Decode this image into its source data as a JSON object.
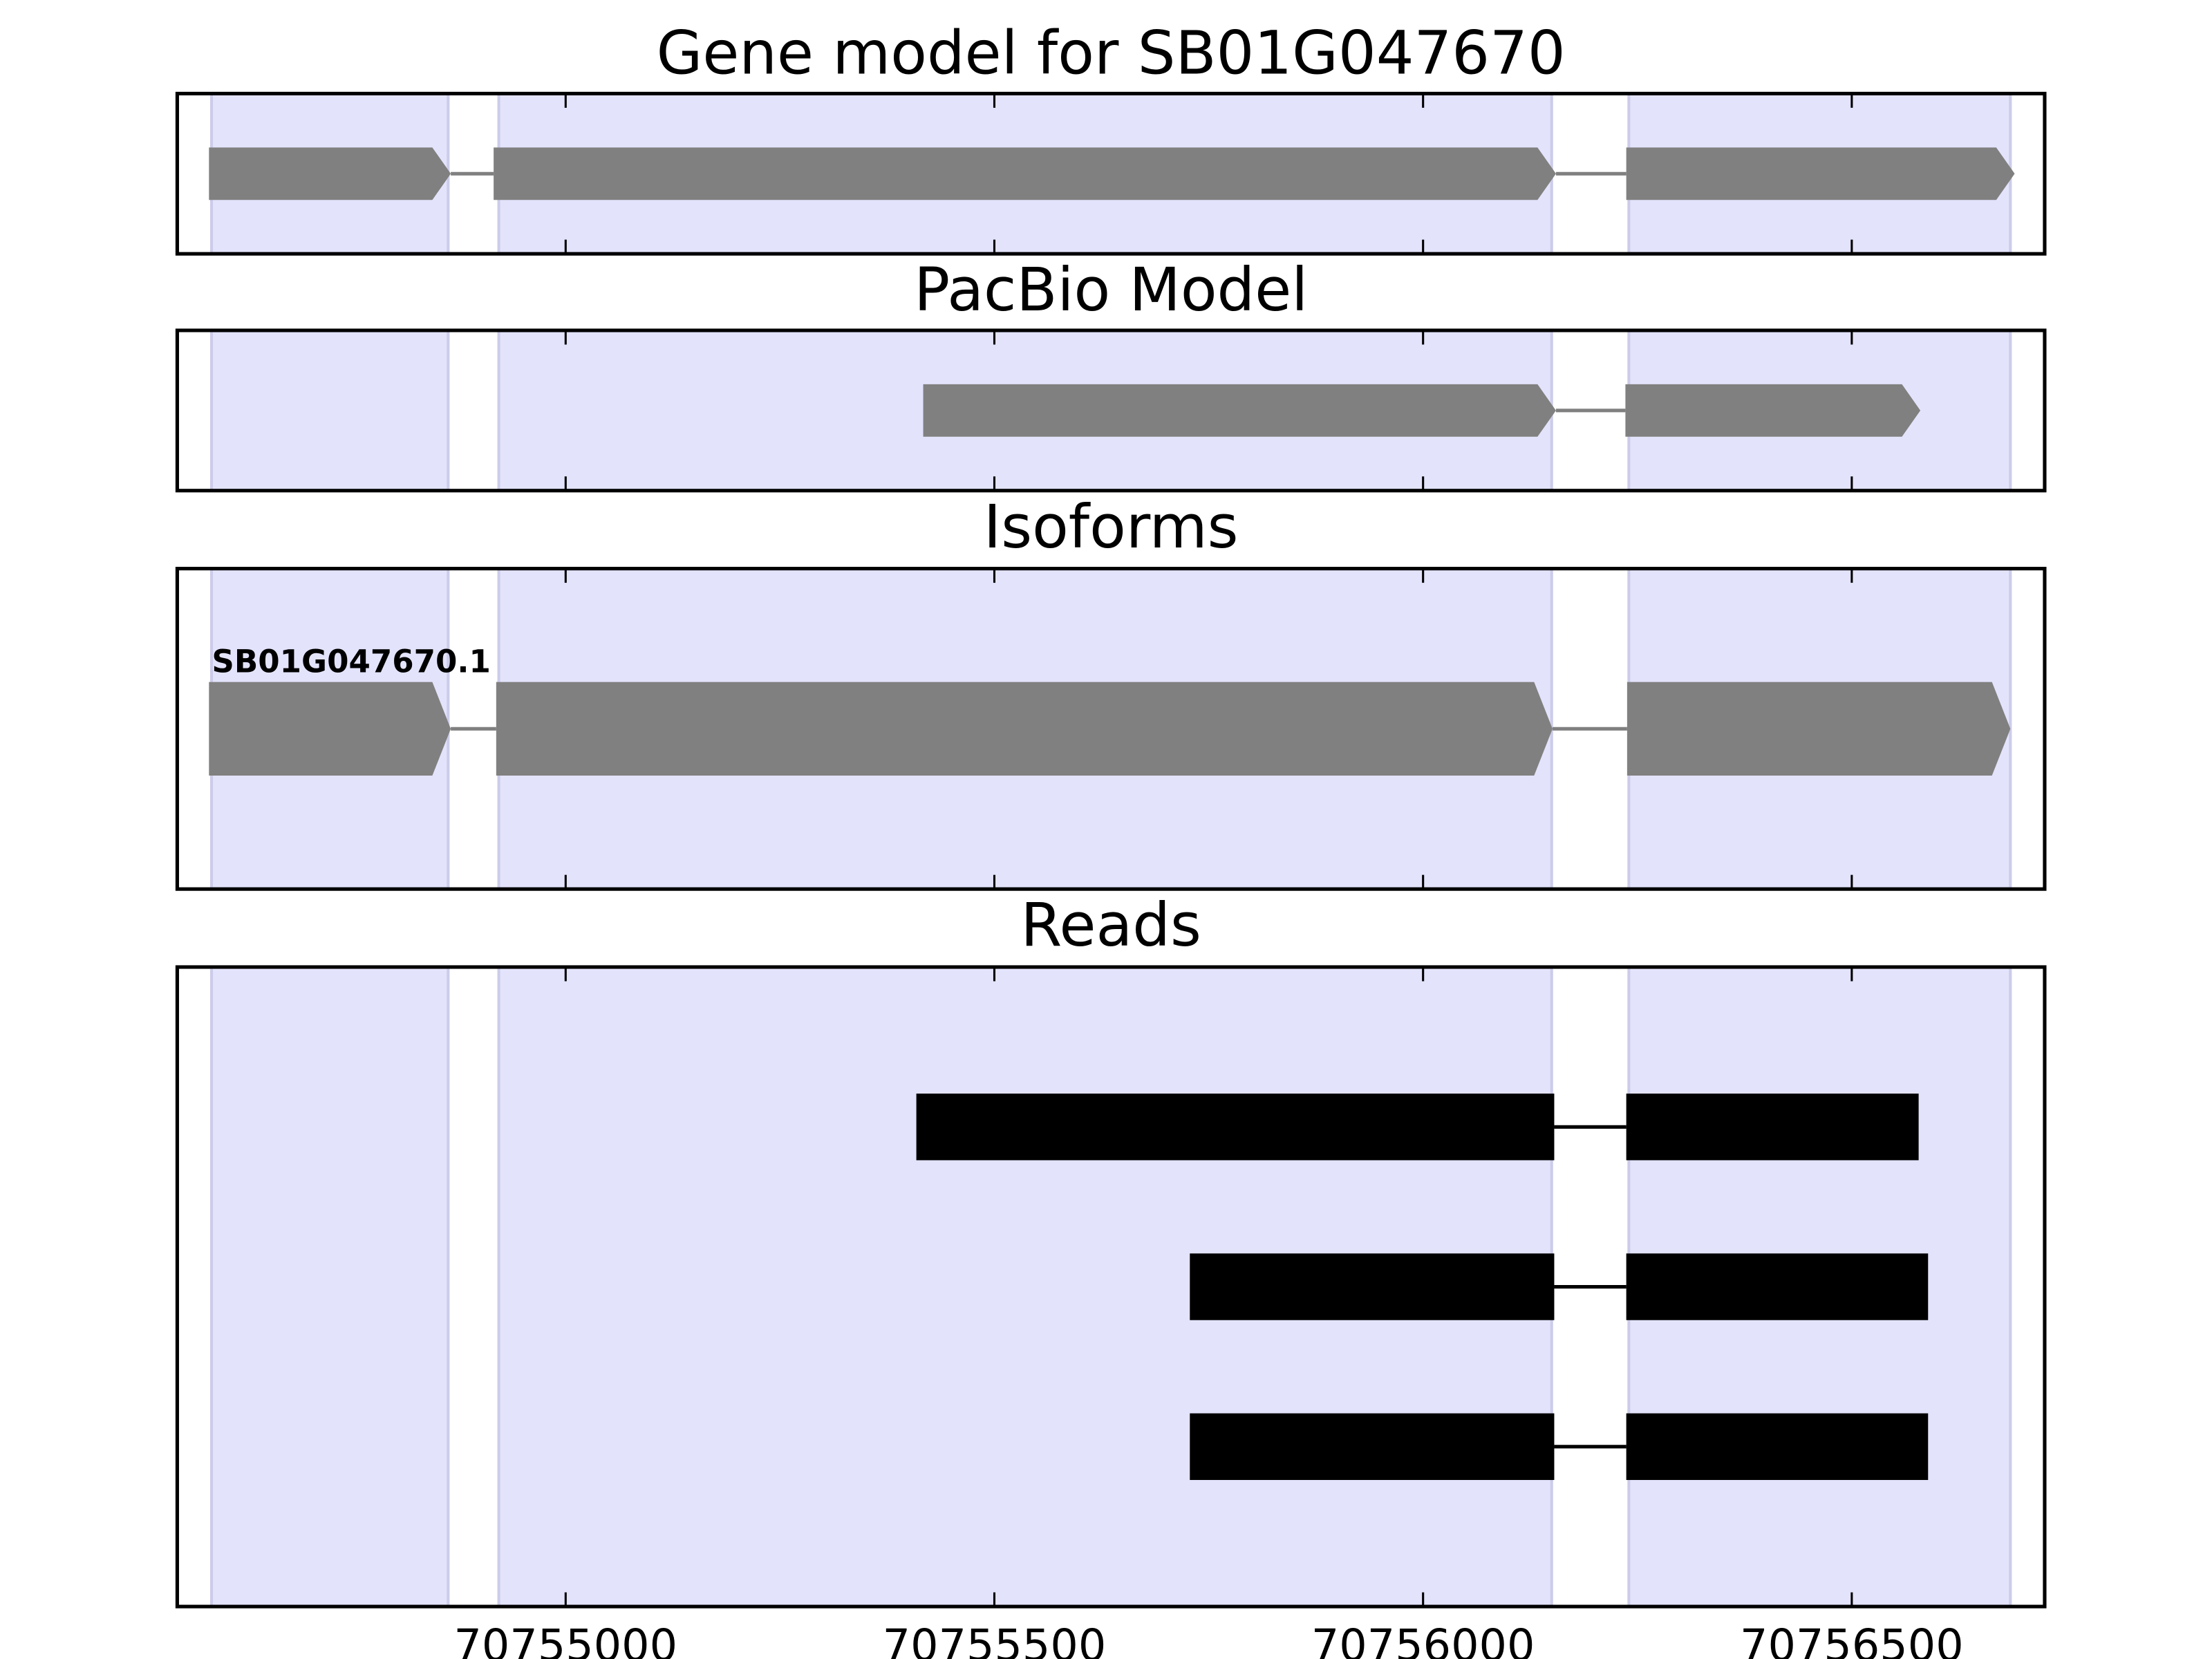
{
  "chart_data": [
    {
      "type": "gene",
      "title": "Gene model for SB01G047670",
      "xlim": [
        70754547,
        70756725
      ],
      "xticks": [
        70755000,
        70755500,
        70756000,
        70756500
      ],
      "region_color": "#e3e3fc",
      "regions": [
        [
          70754587,
          70754863
        ],
        [
          70754922,
          70756150
        ],
        [
          70756240,
          70756685
        ]
      ],
      "color": "#808080",
      "features": [
        {
          "exons": [
            [
              70754584,
              70754866
            ],
            [
              70754916,
              70756155
            ],
            [
              70756237,
              70756690
            ]
          ]
        }
      ]
    },
    {
      "type": "gene",
      "title": "PacBio Model",
      "xlim": [
        70754547,
        70756725
      ],
      "xticks": [
        70755000,
        70755500,
        70756000,
        70756500
      ],
      "region_color": "#e3e3fc",
      "regions": [
        [
          70754587,
          70754863
        ],
        [
          70754922,
          70756150
        ],
        [
          70756240,
          70756685
        ]
      ],
      "color": "#808080",
      "features": [
        {
          "exons": [
            [
              70755417,
              70756155
            ],
            [
              70756236,
              70756580
            ]
          ]
        }
      ]
    },
    {
      "type": "gene",
      "title": "Isoforms",
      "xlim": [
        70754547,
        70756725
      ],
      "xticks": [
        70755000,
        70755500,
        70756000,
        70756500
      ],
      "region_color": "#e3e3fc",
      "regions": [
        [
          70754587,
          70754863
        ],
        [
          70754922,
          70756150
        ],
        [
          70756240,
          70756685
        ]
      ],
      "color": "#808080",
      "features": [
        {
          "name": "SB01G047670.1",
          "exons": [
            [
              70754584,
              70754866
            ],
            [
              70754919,
              70756151
            ],
            [
              70756238,
              70756685
            ]
          ]
        }
      ]
    },
    {
      "type": "reads",
      "title": "Reads",
      "xlim": [
        70754547,
        70756725
      ],
      "xticks": [
        70755000,
        70755500,
        70756000,
        70756500
      ],
      "region_color": "#e3e3fc",
      "regions": [
        [
          70754587,
          70754863
        ],
        [
          70754922,
          70756150
        ],
        [
          70756240,
          70756685
        ]
      ],
      "color": "#000000",
      "features": [
        {
          "exons": [
            [
              70755409,
              70756153
            ],
            [
              70756237,
              70756578
            ]
          ]
        },
        {
          "exons": [
            [
              70755728,
              70756153
            ],
            [
              70756237,
              70756589
            ]
          ]
        },
        {
          "exons": [
            [
              70755728,
              70756153
            ],
            [
              70756237,
              70756589
            ]
          ]
        }
      ]
    }
  ]
}
